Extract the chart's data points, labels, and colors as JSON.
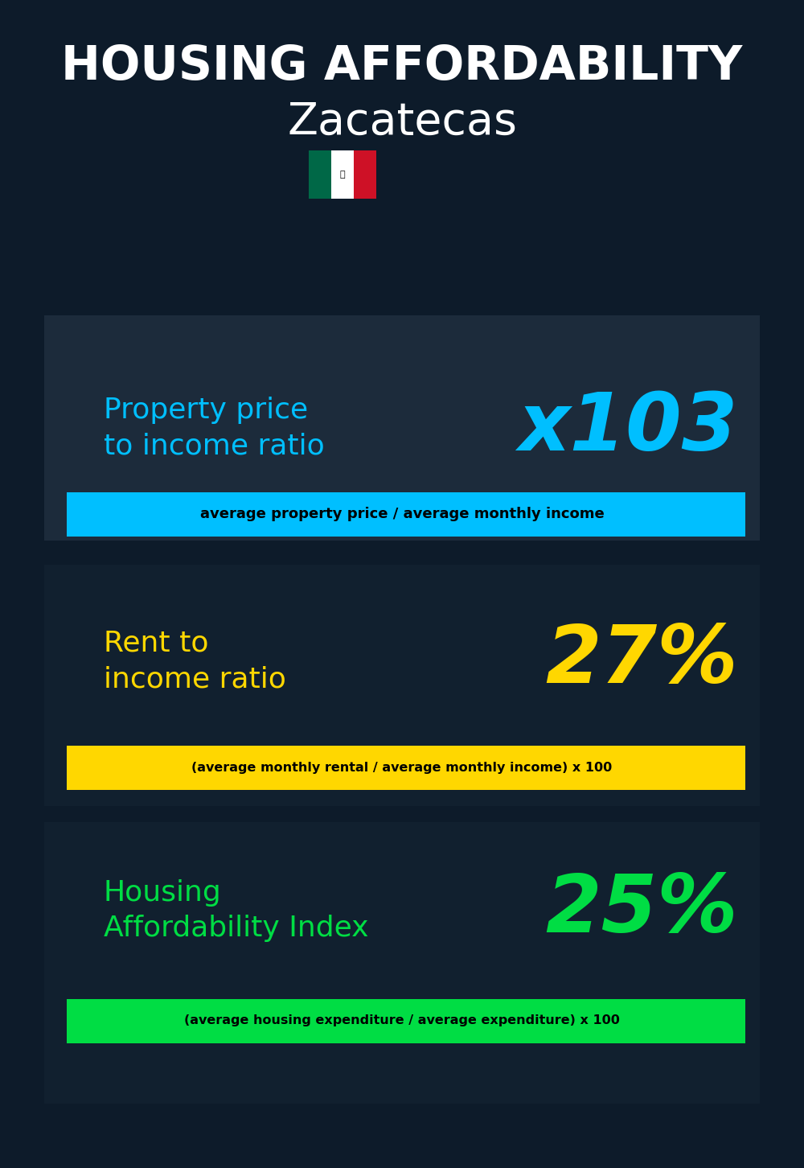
{
  "title_line1": "HOUSING AFFORDABILITY",
  "title_line2": "Zacatecas",
  "section1_label": "Property price\nto income ratio",
  "section1_value": "x103",
  "section1_sublabel": "average property price / average monthly income",
  "section1_label_color": "#00BFFF",
  "section1_value_color": "#00BFFF",
  "section1_bar_color": "#00BFFF",
  "section2_label": "Rent to\nincome ratio",
  "section2_value": "27%",
  "section2_sublabel": "(average monthly rental / average monthly income) x 100",
  "section2_label_color": "#FFD700",
  "section2_value_color": "#FFD700",
  "section2_bar_color": "#FFD700",
  "section3_label": "Housing\nAffordability Index",
  "section3_value": "25%",
  "section3_sublabel": "(average housing expenditure / average expenditure) x 100",
  "section3_label_color": "#00DD44",
  "section3_value_color": "#00DD44",
  "section3_bar_color": "#00DD44",
  "bg_color": "#0d1b2a",
  "text_color_white": "#ffffff",
  "text_color_black": "#000000"
}
